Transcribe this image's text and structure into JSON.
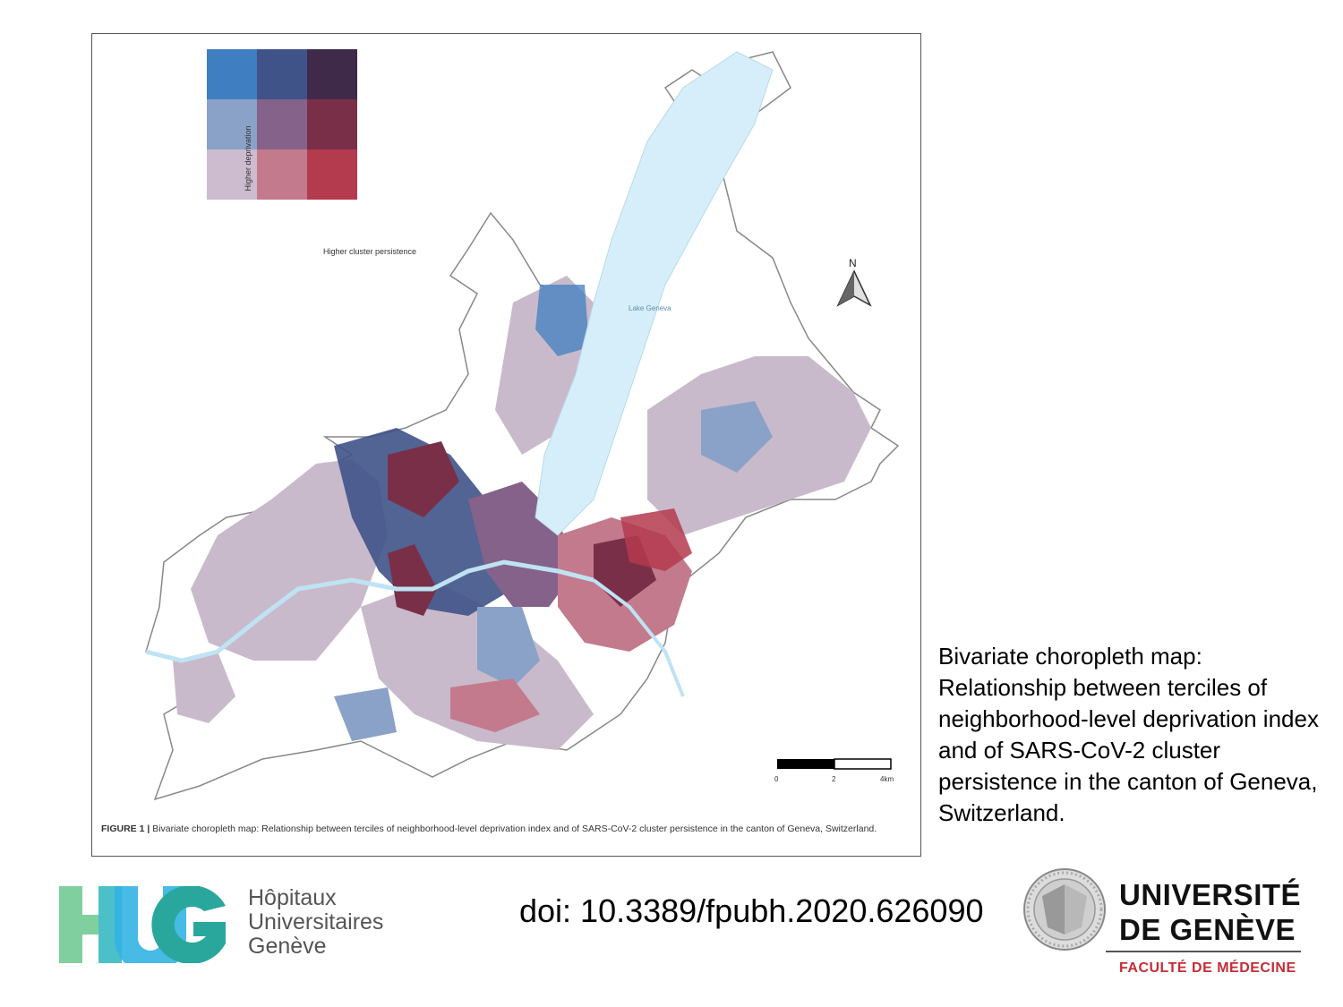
{
  "figure": {
    "legend": {
      "y_label": "Higher deprivation",
      "x_label": "Higher cluster persistence",
      "grid_colors": [
        [
          "#3f7fc1",
          "#3f5388",
          "#3f2a4a"
        ],
        [
          "#8aa2c8",
          "#85628a",
          "#7a2f48"
        ],
        [
          "#cdbbd0",
          "#c37a8c",
          "#b43a4d"
        ]
      ]
    },
    "lake_label": "Lake Geneva",
    "north_label": "N",
    "scale_bar": {
      "ticks": [
        "0",
        "2",
        "4km"
      ]
    },
    "caption_bold": "FIGURE 1 |",
    "caption_text": " Bivariate choropleth map: Relationship between terciles of neighborhood-level deprivation index and of SARS-CoV-2 cluster persistence in the canton of Geneva, Switzerland.",
    "colors": {
      "lake": "#d6eef9",
      "canton_outline": "#888888",
      "base_fill": "#c9bacb"
    }
  },
  "side_note": "Bivariate choropleth map: Relationship between terciles of neighborhood-level deprivation index and of SARS-CoV-2 cluster persistence in the canton of Geneva, Switzerland.",
  "doi": "doi: 10.3389/fpubh.2020.626090",
  "hug": {
    "logo_text": "HUG",
    "lines": [
      "Hôpitaux",
      "Universitaires",
      "Genève"
    ],
    "colors": [
      "#7fcf9f",
      "#33b2e3",
      "#2aa79c"
    ]
  },
  "unige": {
    "line1": "UNIVERSITÉ",
    "line2": "DE GENÈVE",
    "faculty": "FACULTÉ DE MÉDECINE",
    "accent": "#c42d36"
  }
}
